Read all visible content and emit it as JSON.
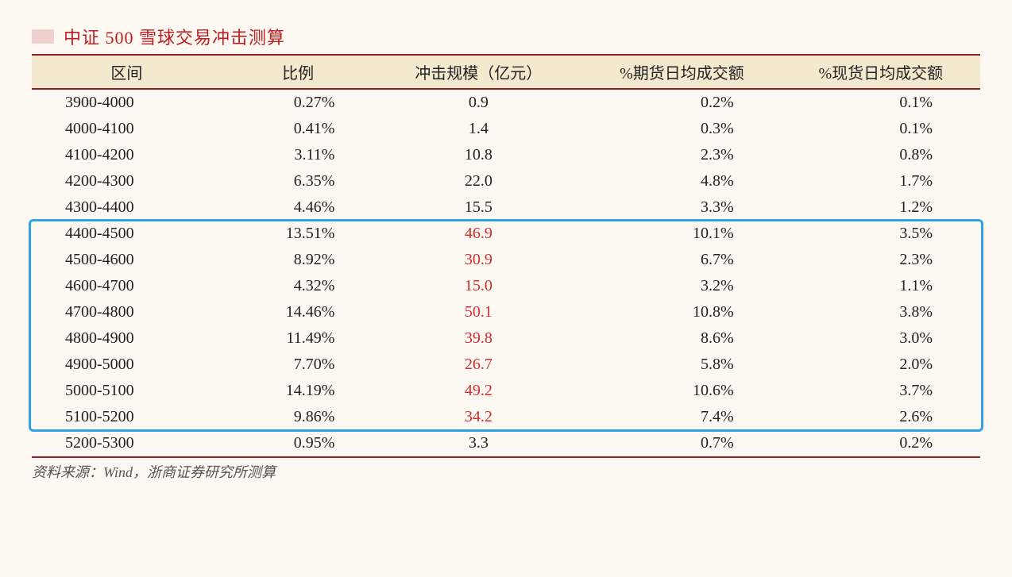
{
  "title": "中证 500 雪球交易冲击测算",
  "source": "资料来源：Wind，浙商证券研究所测算",
  "table": {
    "columns": [
      "区间",
      "比例",
      "冲击规模（亿元）",
      "%期货日均成交额",
      "%现货日均成交额"
    ],
    "header_bg": "#f3e9cf",
    "border_color": "#9b1c21",
    "highlight_color": "#2ea3e6",
    "highlight_text_color": "#d22c2c",
    "text_color": "#222222",
    "background": "#fdf8f2",
    "highlight_range": [
      5,
      12
    ],
    "rows": [
      {
        "range": "3900-4000",
        "ratio": "0.27%",
        "impact": "0.9",
        "futures": "0.2%",
        "spot": "0.1%",
        "hl": false
      },
      {
        "range": "4000-4100",
        "ratio": "0.41%",
        "impact": "1.4",
        "futures": "0.3%",
        "spot": "0.1%",
        "hl": false
      },
      {
        "range": "4100-4200",
        "ratio": "3.11%",
        "impact": "10.8",
        "futures": "2.3%",
        "spot": "0.8%",
        "hl": false
      },
      {
        "range": "4200-4300",
        "ratio": "6.35%",
        "impact": "22.0",
        "futures": "4.8%",
        "spot": "1.7%",
        "hl": false
      },
      {
        "range": "4300-4400",
        "ratio": "4.46%",
        "impact": "15.5",
        "futures": "3.3%",
        "spot": "1.2%",
        "hl": false
      },
      {
        "range": "4400-4500",
        "ratio": "13.51%",
        "impact": "46.9",
        "futures": "10.1%",
        "spot": "3.5%",
        "hl": true
      },
      {
        "range": "4500-4600",
        "ratio": "8.92%",
        "impact": "30.9",
        "futures": "6.7%",
        "spot": "2.3%",
        "hl": true
      },
      {
        "range": "4600-4700",
        "ratio": "4.32%",
        "impact": "15.0",
        "futures": "3.2%",
        "spot": "1.1%",
        "hl": true
      },
      {
        "range": "4700-4800",
        "ratio": "14.46%",
        "impact": "50.1",
        "futures": "10.8%",
        "spot": "3.8%",
        "hl": true
      },
      {
        "range": "4800-4900",
        "ratio": "11.49%",
        "impact": "39.8",
        "futures": "8.6%",
        "spot": "3.0%",
        "hl": true
      },
      {
        "range": "4900-5000",
        "ratio": "7.70%",
        "impact": "26.7",
        "futures": "5.8%",
        "spot": "2.0%",
        "hl": true
      },
      {
        "range": "5000-5100",
        "ratio": "14.19%",
        "impact": "49.2",
        "futures": "10.6%",
        "spot": "3.7%",
        "hl": true
      },
      {
        "range": "5100-5200",
        "ratio": "9.86%",
        "impact": "34.2",
        "futures": "7.4%",
        "spot": "2.6%",
        "hl": true
      },
      {
        "range": "5200-5300",
        "ratio": "0.95%",
        "impact": "3.3",
        "futures": "0.7%",
        "spot": "0.2%",
        "hl": false
      }
    ]
  }
}
